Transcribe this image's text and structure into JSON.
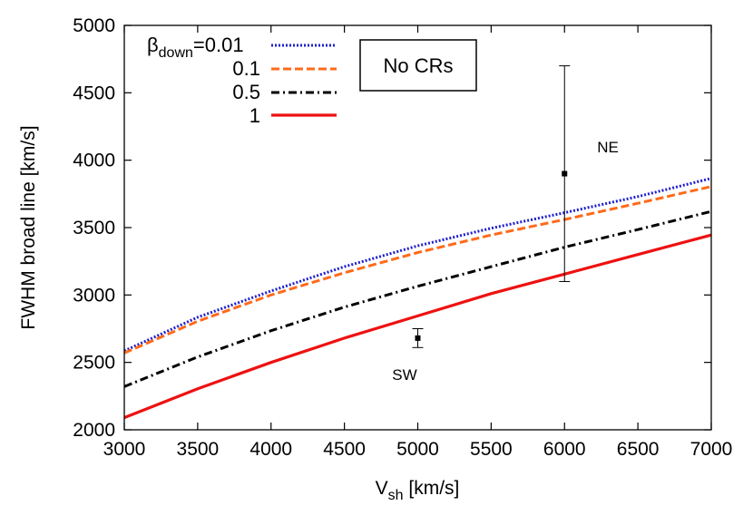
{
  "chart_data": {
    "type": "line",
    "xlabel_main": "V",
    "xlabel_sub": "sh",
    "xlabel_unit": " [km/s]",
    "ylabel": "FWHM broad line  [km/s]",
    "xlim": [
      3000,
      7000
    ],
    "ylim": [
      2000,
      5000
    ],
    "xticks": [
      "3000",
      "3500",
      "4000",
      "4500",
      "5000",
      "5500",
      "6000",
      "6500",
      "7000"
    ],
    "yticks": [
      "2000",
      "2500",
      "3000",
      "3500",
      "4000",
      "4500",
      "5000"
    ],
    "grid": false,
    "legend_placement": "top-left",
    "legend_symbol": "β",
    "legend_symbol_sub": "down",
    "x": [
      3000,
      3500,
      4000,
      4500,
      5000,
      5500,
      6000,
      6500,
      7000
    ],
    "series": [
      {
        "name": "=0.01",
        "color": "#1f1fcf",
        "style": "dotted",
        "values": [
          2585,
          2835,
          3030,
          3210,
          3365,
          3495,
          3610,
          3730,
          3865
        ]
      },
      {
        "name": "0.1",
        "color": "#ff6a1a",
        "style": "dashed",
        "values": [
          2570,
          2805,
          3000,
          3165,
          3315,
          3445,
          3560,
          3680,
          3805
        ]
      },
      {
        "name": "0.5",
        "color": "#000000",
        "style": "dashdot",
        "values": [
          2320,
          2540,
          2735,
          2910,
          3065,
          3210,
          3355,
          3485,
          3620
        ]
      },
      {
        "name": "1",
        "color": "#ee1111",
        "style": "solid",
        "values": [
          2090,
          2305,
          2500,
          2680,
          2845,
          3010,
          3155,
          3300,
          3445
        ]
      }
    ],
    "error_points": [
      {
        "label": "NE",
        "x": 6000,
        "y": 3900,
        "yerr_low": 3100,
        "yerr_high": 4700
      },
      {
        "label": "SW",
        "x": 5000,
        "y": 2680,
        "yerr_low": 2610,
        "yerr_high": 2750
      }
    ],
    "annotation_box": "No CRs"
  }
}
